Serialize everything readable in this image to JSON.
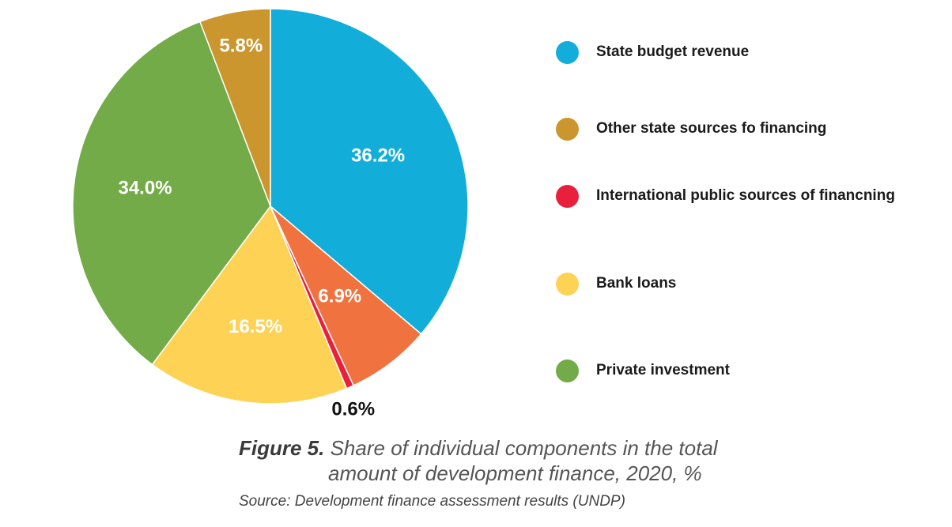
{
  "chart_data": {
    "type": "pie",
    "series": [
      {
        "name": "State budget revenue",
        "value": 36.2,
        "label": "36.2%",
        "color": "#12aed9"
      },
      {
        "name": "Other state sources fo financing",
        "value": 5.8,
        "label": "5.8%",
        "color": "#cc962e"
      },
      {
        "name": "International public sources of financning",
        "value": 0.6,
        "label": "0.6%",
        "color": "#e8203c"
      },
      {
        "name": "Bank loans",
        "value": 16.5,
        "label": "16.5%",
        "color": "#fdd255"
      },
      {
        "name": "Private investment",
        "value": 34.0,
        "label": "34.0%",
        "color": "#72ab47"
      },
      {
        "name": "",
        "value": 6.9,
        "label": "6.9%",
        "color": "#ef723f"
      }
    ],
    "slice_order_clockwise_from_top": [
      0,
      5,
      2,
      3,
      4,
      1
    ],
    "legend": {
      "placement": "right",
      "order": [
        0,
        1,
        2,
        3,
        4
      ]
    }
  },
  "caption": {
    "figure_number": "Figure 5.",
    "line1": "Share of individual components in the total",
    "line2": "amount of development finance, 2020, %"
  },
  "source": "Source: Development finance assessment results (UNDP)"
}
